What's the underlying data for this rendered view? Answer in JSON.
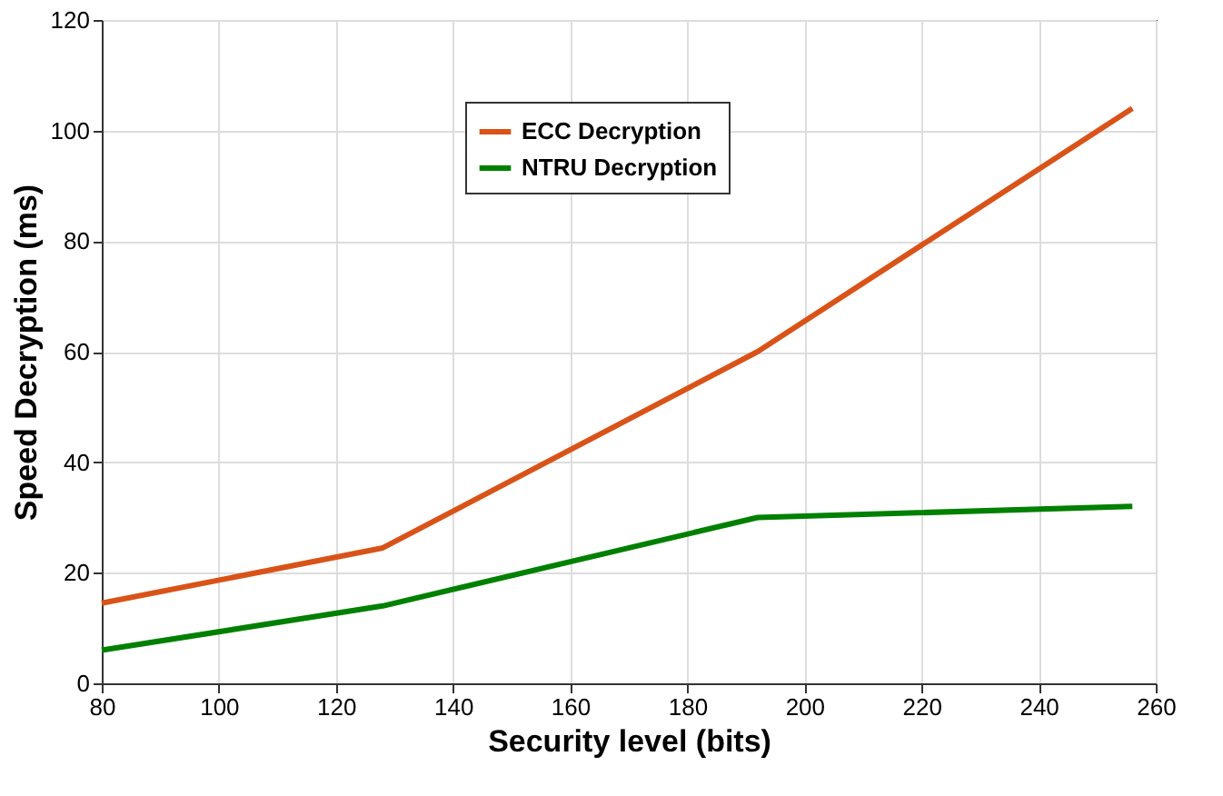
{
  "chart_data": {
    "type": "line",
    "xlabel": "Security level (bits)",
    "ylabel": "Speed Decryption (ms)",
    "x": [
      80,
      128,
      192,
      256
    ],
    "series": [
      {
        "name": "ECC Decryption",
        "color": "#d95319",
        "values": [
          14.5,
          24.5,
          60,
          104
        ]
      },
      {
        "name": "NTRU Decryption",
        "color": "#008000",
        "values": [
          6,
          14,
          30,
          32
        ]
      }
    ],
    "xlim": [
      80,
      260
    ],
    "xticks": [
      80,
      100,
      120,
      140,
      160,
      180,
      200,
      220,
      240,
      260
    ],
    "ylim": [
      0,
      120
    ],
    "yticks": [
      0,
      20,
      40,
      60,
      80,
      100,
      120
    ],
    "grid": true,
    "legend": "top",
    "line_style": "solid",
    "marker": "none"
  }
}
